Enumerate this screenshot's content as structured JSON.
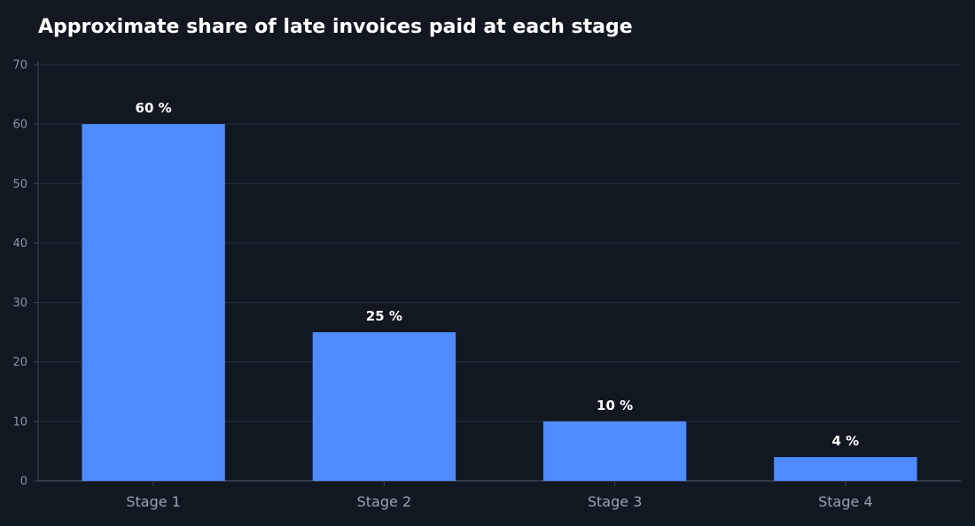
{
  "chart_data": {
    "type": "bar",
    "title": "Approximate share of late invoices paid at each stage",
    "categories": [
      "Stage 1",
      "Stage 2",
      "Stage 3",
      "Stage 4"
    ],
    "values": [
      60,
      25,
      10,
      4
    ],
    "data_labels": [
      "60 %",
      "25 %",
      "10 %",
      "4 %"
    ],
    "ylim": [
      0,
      70
    ],
    "yticks": [
      0,
      10,
      20,
      30,
      40,
      50,
      60,
      70
    ],
    "xlabel": "",
    "ylabel": "",
    "grid": true,
    "colors": {
      "bar": "#4f8bff",
      "background": "#111822",
      "grid": "#1f2a36",
      "axis": "#3a4656"
    }
  }
}
